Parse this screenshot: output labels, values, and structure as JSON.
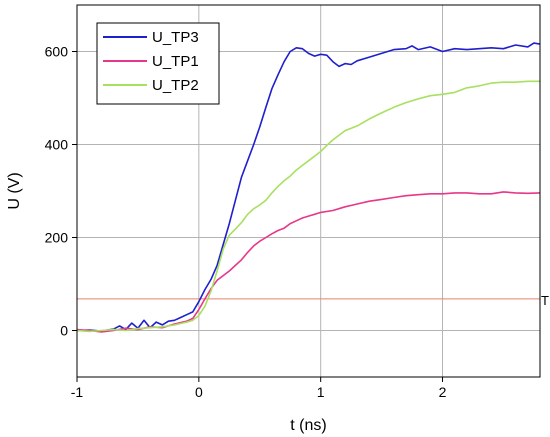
{
  "chart_data": {
    "type": "line",
    "xlabel": "t (ns)",
    "ylabel": "U (V)",
    "xlim": [
      -1,
      2.8
    ],
    "ylim": [
      -100,
      700
    ],
    "xticks": [
      -1,
      0,
      1,
      2
    ],
    "yticks": [
      0,
      200,
      400,
      600
    ],
    "grid": true,
    "legend_position": "top-left",
    "threshold": {
      "label": "T",
      "value": 68,
      "color": "#e8826a"
    },
    "series": [
      {
        "name": "U_TP3",
        "color": "#1f1fcf",
        "points": [
          [
            -1,
            0
          ],
          [
            -0.9,
            1
          ],
          [
            -0.8,
            -1
          ],
          [
            -0.7,
            3
          ],
          [
            -0.65,
            10
          ],
          [
            -0.6,
            2
          ],
          [
            -0.55,
            16
          ],
          [
            -0.5,
            5
          ],
          [
            -0.45,
            22
          ],
          [
            -0.4,
            6
          ],
          [
            -0.35,
            18
          ],
          [
            -0.3,
            12
          ],
          [
            -0.25,
            20
          ],
          [
            -0.2,
            22
          ],
          [
            -0.15,
            28
          ],
          [
            -0.1,
            34
          ],
          [
            -0.05,
            40
          ],
          [
            0,
            62
          ],
          [
            0.05,
            88
          ],
          [
            0.1,
            110
          ],
          [
            0.15,
            140
          ],
          [
            0.2,
            185
          ],
          [
            0.25,
            230
          ],
          [
            0.3,
            280
          ],
          [
            0.35,
            330
          ],
          [
            0.4,
            365
          ],
          [
            0.45,
            400
          ],
          [
            0.5,
            438
          ],
          [
            0.55,
            480
          ],
          [
            0.6,
            520
          ],
          [
            0.65,
            550
          ],
          [
            0.7,
            578
          ],
          [
            0.75,
            600
          ],
          [
            0.8,
            608
          ],
          [
            0.85,
            606
          ],
          [
            0.9,
            596
          ],
          [
            0.95,
            590
          ],
          [
            1.0,
            594
          ],
          [
            1.05,
            592
          ],
          [
            1.1,
            578
          ],
          [
            1.15,
            568
          ],
          [
            1.2,
            574
          ],
          [
            1.25,
            572
          ],
          [
            1.3,
            580
          ],
          [
            1.4,
            588
          ],
          [
            1.5,
            596
          ],
          [
            1.6,
            604
          ],
          [
            1.7,
            606
          ],
          [
            1.75,
            612
          ],
          [
            1.8,
            604
          ],
          [
            1.9,
            610
          ],
          [
            2.0,
            600
          ],
          [
            2.1,
            606
          ],
          [
            2.2,
            604
          ],
          [
            2.3,
            606
          ],
          [
            2.4,
            608
          ],
          [
            2.5,
            606
          ],
          [
            2.6,
            614
          ],
          [
            2.7,
            610
          ],
          [
            2.75,
            618
          ],
          [
            2.8,
            616
          ]
        ]
      },
      {
        "name": "U_TP1",
        "color": "#e6378a",
        "points": [
          [
            -1,
            2
          ],
          [
            -0.9,
            0
          ],
          [
            -0.8,
            -3
          ],
          [
            -0.7,
            0
          ],
          [
            -0.6,
            5
          ],
          [
            -0.5,
            2
          ],
          [
            -0.4,
            8
          ],
          [
            -0.3,
            6
          ],
          [
            -0.2,
            14
          ],
          [
            -0.1,
            20
          ],
          [
            -0.05,
            26
          ],
          [
            0,
            45
          ],
          [
            0.05,
            68
          ],
          [
            0.1,
            90
          ],
          [
            0.15,
            108
          ],
          [
            0.2,
            118
          ],
          [
            0.25,
            128
          ],
          [
            0.3,
            140
          ],
          [
            0.35,
            152
          ],
          [
            0.4,
            168
          ],
          [
            0.45,
            182
          ],
          [
            0.5,
            192
          ],
          [
            0.55,
            200
          ],
          [
            0.6,
            208
          ],
          [
            0.65,
            215
          ],
          [
            0.7,
            220
          ],
          [
            0.75,
            230
          ],
          [
            0.8,
            236
          ],
          [
            0.85,
            242
          ],
          [
            0.9,
            246
          ],
          [
            0.95,
            250
          ],
          [
            1.0,
            254
          ],
          [
            1.1,
            258
          ],
          [
            1.2,
            266
          ],
          [
            1.3,
            272
          ],
          [
            1.4,
            278
          ],
          [
            1.5,
            282
          ],
          [
            1.6,
            286
          ],
          [
            1.7,
            290
          ],
          [
            1.8,
            292
          ],
          [
            1.9,
            294
          ],
          [
            2.0,
            294
          ],
          [
            2.1,
            296
          ],
          [
            2.2,
            296
          ],
          [
            2.3,
            294
          ],
          [
            2.4,
            294
          ],
          [
            2.5,
            298
          ],
          [
            2.6,
            296
          ],
          [
            2.7,
            295
          ],
          [
            2.8,
            296
          ]
        ]
      },
      {
        "name": "U_TP2",
        "color": "#a8e060",
        "points": [
          [
            -1,
            0
          ],
          [
            -0.9,
            -2
          ],
          [
            -0.8,
            0
          ],
          [
            -0.7,
            2
          ],
          [
            -0.6,
            0
          ],
          [
            -0.5,
            4
          ],
          [
            -0.4,
            6
          ],
          [
            -0.3,
            8
          ],
          [
            -0.2,
            12
          ],
          [
            -0.1,
            18
          ],
          [
            -0.05,
            22
          ],
          [
            0,
            32
          ],
          [
            0.05,
            52
          ],
          [
            0.1,
            85
          ],
          [
            0.15,
            128
          ],
          [
            0.2,
            175
          ],
          [
            0.25,
            205
          ],
          [
            0.3,
            218
          ],
          [
            0.35,
            232
          ],
          [
            0.4,
            250
          ],
          [
            0.45,
            262
          ],
          [
            0.5,
            270
          ],
          [
            0.55,
            280
          ],
          [
            0.6,
            296
          ],
          [
            0.65,
            310
          ],
          [
            0.7,
            322
          ],
          [
            0.75,
            332
          ],
          [
            0.8,
            345
          ],
          [
            0.85,
            355
          ],
          [
            0.9,
            365
          ],
          [
            0.95,
            375
          ],
          [
            1.0,
            385
          ],
          [
            1.05,
            398
          ],
          [
            1.1,
            410
          ],
          [
            1.15,
            420
          ],
          [
            1.2,
            430
          ],
          [
            1.3,
            440
          ],
          [
            1.4,
            455
          ],
          [
            1.5,
            468
          ],
          [
            1.6,
            480
          ],
          [
            1.7,
            490
          ],
          [
            1.8,
            498
          ],
          [
            1.9,
            505
          ],
          [
            2.0,
            508
          ],
          [
            2.1,
            512
          ],
          [
            2.2,
            522
          ],
          [
            2.3,
            526
          ],
          [
            2.4,
            532
          ],
          [
            2.5,
            534
          ],
          [
            2.6,
            534
          ],
          [
            2.7,
            536
          ],
          [
            2.8,
            536
          ]
        ]
      }
    ]
  }
}
